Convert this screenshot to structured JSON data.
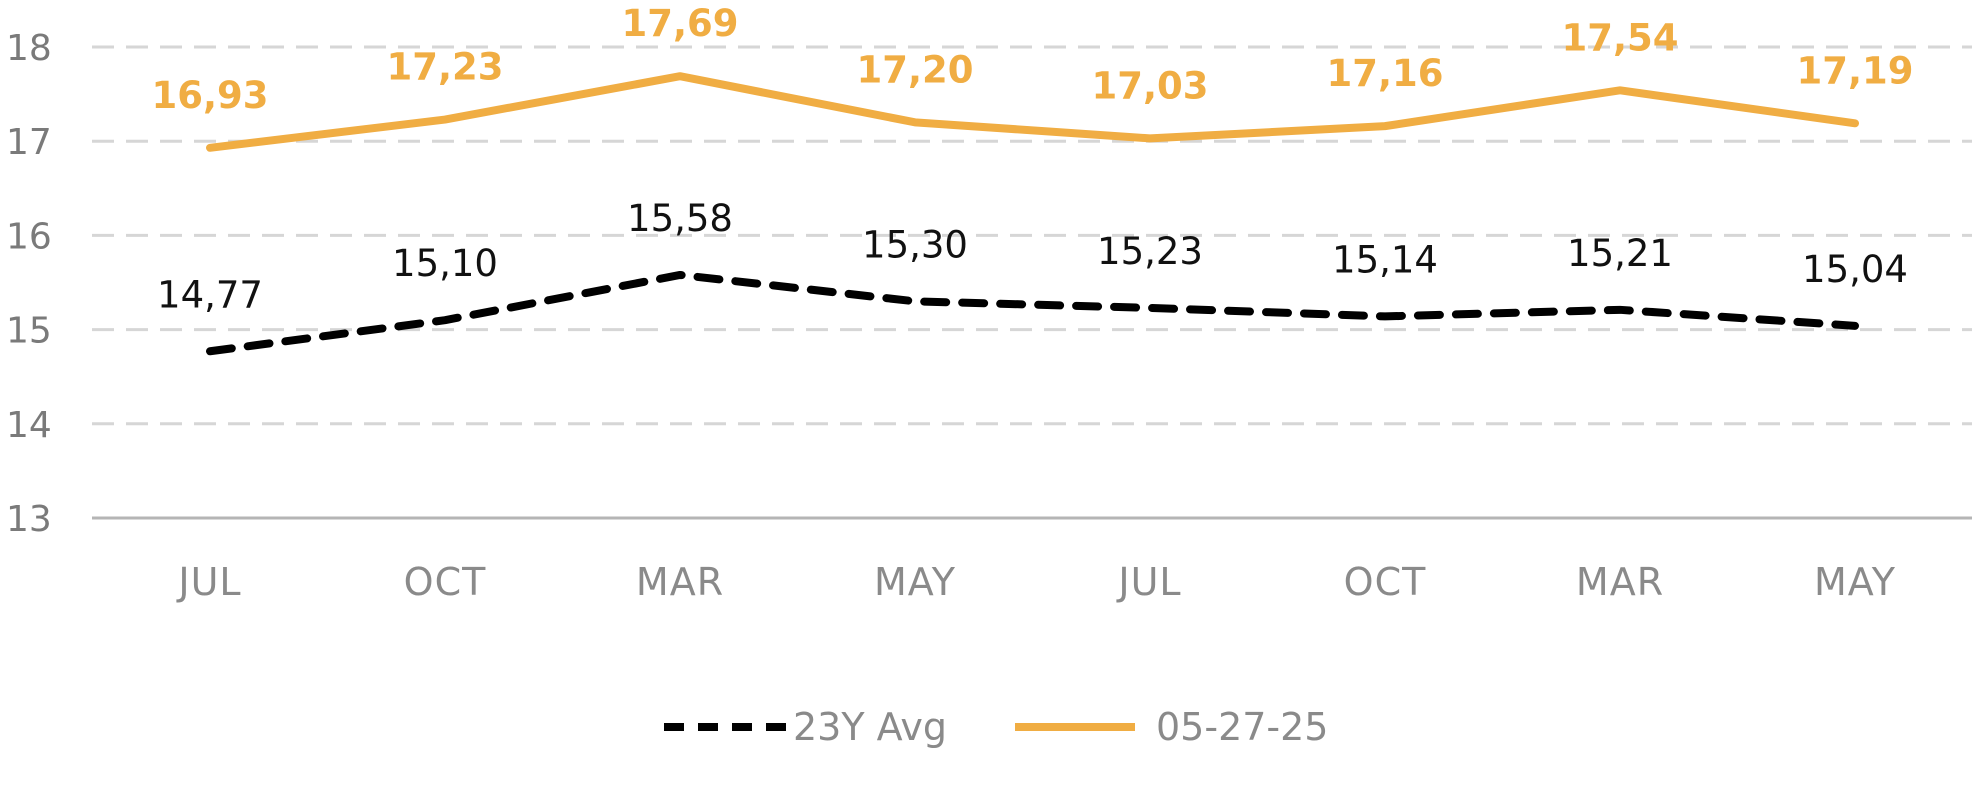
{
  "chart_data": {
    "type": "line",
    "categories": [
      "JUL",
      "OCT",
      "MAR",
      "MAY",
      "JUL",
      "OCT",
      "MAR",
      "MAY"
    ],
    "ylim": [
      13,
      18
    ],
    "yticks": [
      "13",
      "14",
      "15",
      "16",
      "17",
      "18"
    ],
    "grid": true,
    "legend_position": "bottom-center",
    "series": [
      {
        "name": "23Y Avg",
        "values": [
          14.77,
          15.1,
          15.58,
          15.3,
          15.23,
          15.14,
          15.21,
          15.04
        ],
        "labels": [
          "14,77",
          "15,10",
          "15,58",
          "15,30",
          "15,23",
          "15,14",
          "15,21",
          "15,04"
        ],
        "color": "#000000",
        "style": "dashed"
      },
      {
        "name": "05-27-25",
        "values": [
          16.93,
          17.23,
          17.69,
          17.2,
          17.03,
          17.16,
          17.54,
          17.19
        ],
        "labels": [
          "16,93",
          "17,23",
          "17,69",
          "17,20",
          "17,03",
          "17,16",
          "17,54",
          "17,19"
        ],
        "color": "#F0AD43",
        "style": "solid"
      }
    ]
  }
}
